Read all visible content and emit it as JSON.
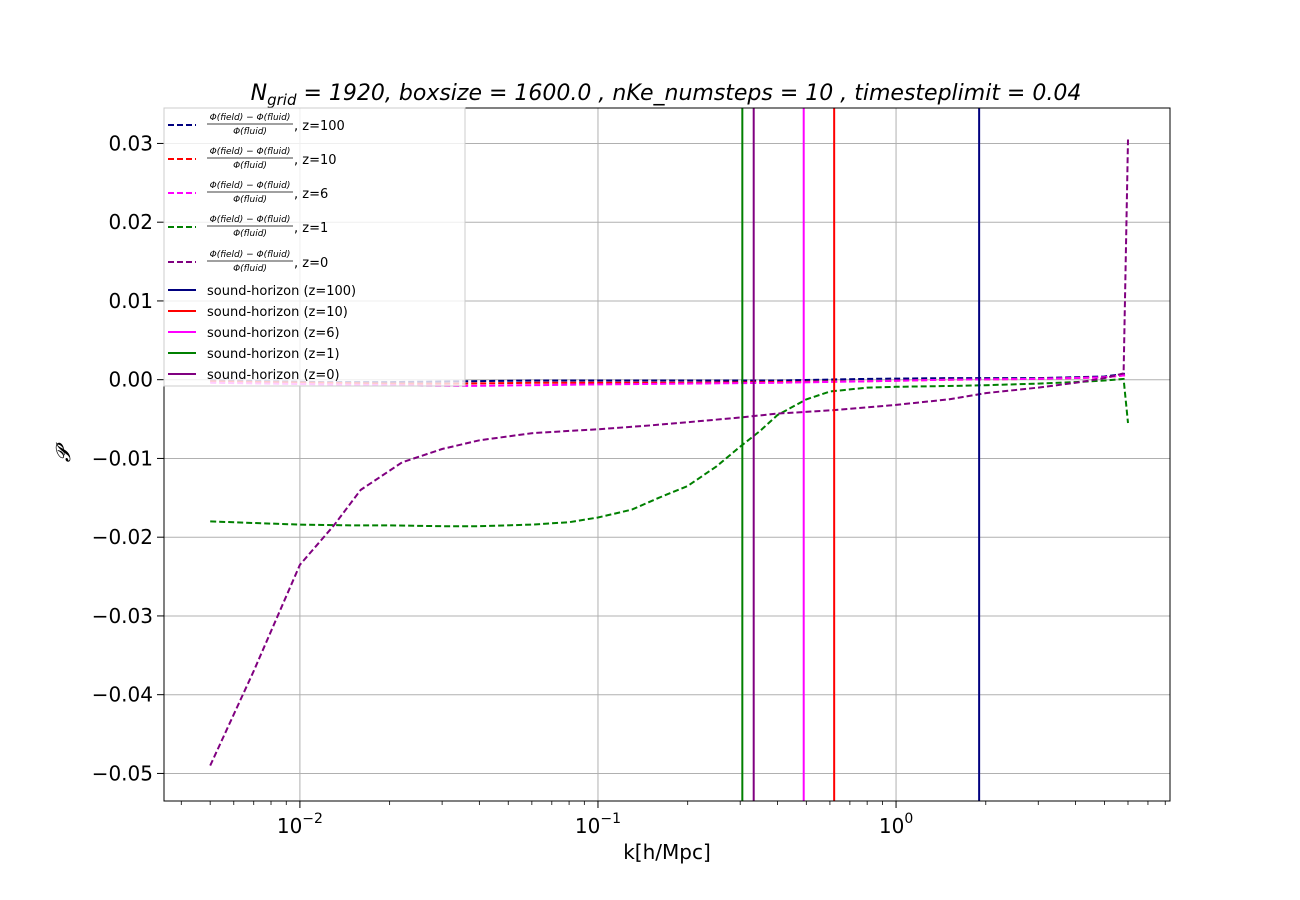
{
  "chart_data": {
    "type": "line",
    "title": "N_grid = 1920, boxsize = 1600.0 , nKe_numsteps = 10 , timesteplimit = 0.04",
    "title_parts": {
      "n": "N",
      "grid": "grid",
      "rest": " = 1920, boxsize = 1600.0 , nKe_numsteps = 10 , timesteplimit = 0.04"
    },
    "xlabel": "k[h/Mpc]",
    "ylabel": "𝓟",
    "xscale": "log",
    "xlim": [
      0.0035,
      8.3
    ],
    "ylim": [
      -0.0535,
      0.0345
    ],
    "grid": true,
    "legend_position": "upper-left",
    "x_ticks": [
      {
        "value": 0.01,
        "base": "10",
        "exp": "−2"
      },
      {
        "value": 0.1,
        "base": "10",
        "exp": "−1"
      },
      {
        "value": 1,
        "base": "10",
        "exp": "0"
      }
    ],
    "y_ticks": [
      {
        "value": 0.03,
        "label": "0.03"
      },
      {
        "value": 0.02,
        "label": "0.02"
      },
      {
        "value": 0.01,
        "label": "0.01"
      },
      {
        "value": 0.0,
        "label": "0.00"
      },
      {
        "value": -0.01,
        "label": "−0.01"
      },
      {
        "value": -0.02,
        "label": "−0.02"
      },
      {
        "value": -0.03,
        "label": "−0.03"
      },
      {
        "value": -0.04,
        "label": "−0.04"
      },
      {
        "value": -0.05,
        "label": "−0.05"
      }
    ],
    "legend_fraction": {
      "numerator": "Φ(field) − Φ(fluid)",
      "denominator": "Φ(fluid)"
    },
    "series": [
      {
        "name": "z=100",
        "legend_suffix": ",  z=100",
        "color": "#00007f",
        "style": "dashed",
        "x": [
          0.005,
          0.008,
          0.012,
          0.02,
          0.035,
          0.06,
          0.1,
          0.2,
          0.4,
          0.8,
          1.5,
          3,
          5,
          6
        ],
        "y": [
          -0.0001,
          -0.0002,
          -0.0003,
          -0.0003,
          -0.0002,
          -0.0001,
          -0.0001,
          -0.0001,
          -0.0001,
          0.0001,
          0.0002,
          0.0002,
          0.0004,
          0.0008
        ]
      },
      {
        "name": "z=10",
        "legend_suffix": ", z=10",
        "color": "#ff0000",
        "style": "dashed",
        "x": [
          0.005,
          0.008,
          0.012,
          0.02,
          0.035,
          0.06,
          0.1,
          0.2,
          0.4,
          0.8,
          1.5,
          3,
          5,
          6
        ],
        "y": [
          -0.0002,
          -0.0003,
          -0.0004,
          -0.0005,
          -0.0005,
          -0.0004,
          -0.0004,
          -0.0004,
          -0.0003,
          -0.0002,
          0.0,
          0.0001,
          0.0003,
          0.0006
        ]
      },
      {
        "name": "z=6",
        "legend_suffix": ",  z=6",
        "color": "#ff00ff",
        "style": "dashed",
        "x": [
          0.005,
          0.008,
          0.012,
          0.02,
          0.035,
          0.06,
          0.1,
          0.2,
          0.4,
          0.8,
          1.5,
          3,
          5,
          6
        ],
        "y": [
          -0.0004,
          -0.0005,
          -0.0006,
          -0.0007,
          -0.0008,
          -0.0007,
          -0.0006,
          -0.0005,
          -0.0004,
          -0.0002,
          0.0,
          0.0001,
          0.0003,
          0.0006
        ]
      },
      {
        "name": "z=1",
        "legend_suffix": ", z=1",
        "color": "#008000",
        "style": "dashed",
        "x": [
          0.005,
          0.007,
          0.01,
          0.015,
          0.02,
          0.03,
          0.04,
          0.06,
          0.08,
          0.1,
          0.13,
          0.16,
          0.2,
          0.25,
          0.3,
          0.35,
          0.4,
          0.5,
          0.6,
          0.8,
          1.0,
          1.5,
          2,
          3,
          4,
          5,
          5.8,
          6.0
        ],
        "y": [
          -0.018,
          -0.0182,
          -0.0184,
          -0.0185,
          -0.0185,
          -0.0186,
          -0.0186,
          -0.0184,
          -0.0181,
          -0.0175,
          -0.0165,
          -0.015,
          -0.0135,
          -0.011,
          -0.0085,
          -0.0065,
          -0.0045,
          -0.0025,
          -0.0015,
          -0.001,
          -0.0009,
          -0.0008,
          -0.0007,
          -0.0005,
          -0.0003,
          -0.0001,
          0.0001,
          -0.0055
        ]
      },
      {
        "name": "z=0",
        "legend_suffix": ", z=0",
        "color": "#800080",
        "style": "dashed",
        "x": [
          0.005,
          0.007,
          0.01,
          0.013,
          0.016,
          0.022,
          0.03,
          0.04,
          0.06,
          0.08,
          0.1,
          0.15,
          0.2,
          0.3,
          0.4,
          0.6,
          0.8,
          1.0,
          1.5,
          2.0,
          3.0,
          4.0,
          5.0,
          5.8,
          6.0
        ],
        "y": [
          -0.049,
          -0.037,
          -0.0235,
          -0.0185,
          -0.014,
          -0.0105,
          -0.0088,
          -0.0077,
          -0.0068,
          -0.0065,
          -0.0063,
          -0.0058,
          -0.0054,
          -0.0048,
          -0.0043,
          -0.0039,
          -0.0035,
          -0.0032,
          -0.0025,
          -0.0017,
          -0.001,
          -0.0004,
          0.0002,
          0.0008,
          0.0305
        ]
      }
    ],
    "vertical_lines": [
      {
        "name": "sound-horizon (z=100)",
        "x": 1.9,
        "color": "#00007f"
      },
      {
        "name": "sound-horizon (z=10)",
        "x": 0.62,
        "color": "#ff0000"
      },
      {
        "name": "sound-horizon (z=6)",
        "x": 0.49,
        "color": "#ff00ff"
      },
      {
        "name": "sound-horizon (z=1)",
        "x": 0.305,
        "color": "#008000"
      },
      {
        "name": "sound-horizon (z=0)",
        "x": 0.333,
        "color": "#800080"
      }
    ]
  }
}
